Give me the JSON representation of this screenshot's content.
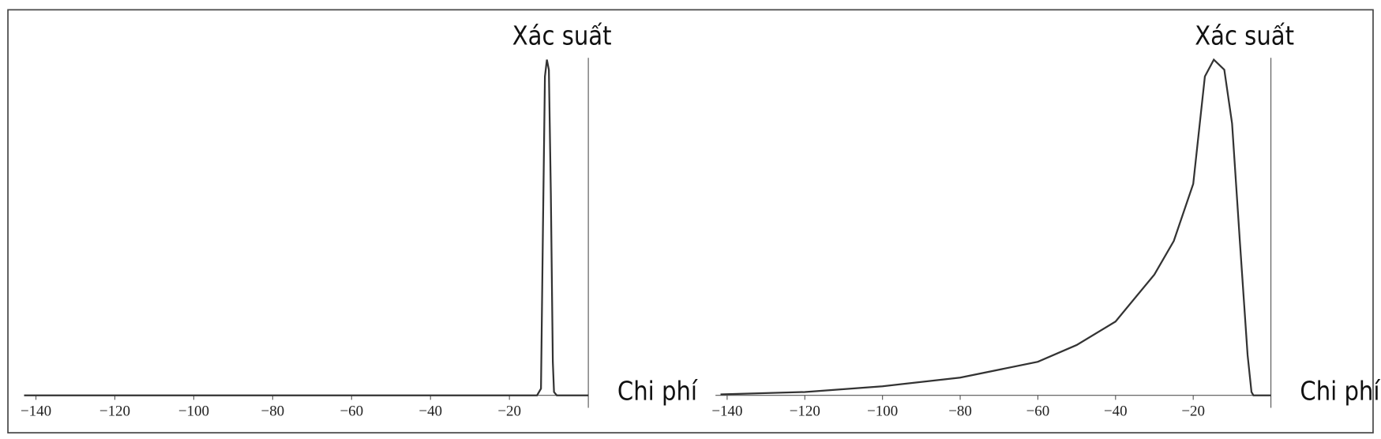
{
  "chart_data": [
    {
      "type": "line",
      "ylabel": "Xác suất",
      "xlabel": "Chi phí",
      "x": [
        -143,
        -13,
        -12,
        -11.5,
        -11,
        -10.5,
        -10,
        -9.5,
        -9,
        -8.7,
        -8,
        0
      ],
      "series": [
        {
          "color": "#333333",
          "values": [
            0,
            0,
            0.02,
            0.5,
            0.95,
            1,
            0.97,
            0.6,
            0.1,
            0.01,
            0,
            0
          ]
        }
      ],
      "xlim": [
        -143,
        0
      ],
      "ylim": [
        0,
        1
      ],
      "xticks": [
        {
          "value": -140,
          "label": "−140"
        },
        {
          "value": -120,
          "label": "−120"
        },
        {
          "value": -100,
          "label": "−100"
        },
        {
          "value": -80,
          "label": "−80"
        },
        {
          "value": -60,
          "label": "−60"
        },
        {
          "value": -40,
          "label": "−40"
        },
        {
          "value": -20,
          "label": "−20"
        }
      ]
    },
    {
      "type": "line",
      "ylabel": "Xác suất",
      "xlabel": "Chi phí",
      "x": [
        -141.7,
        -120,
        -100,
        -80,
        -60,
        -50,
        -40,
        -30,
        -25,
        -20,
        -17,
        -14.7,
        -12,
        -10,
        -8,
        -6,
        -5,
        -4.5,
        0
      ],
      "series": [
        {
          "color": "#333333",
          "values": [
            0.003,
            0.01,
            0.027,
            0.053,
            0.1,
            0.15,
            0.22,
            0.36,
            0.46,
            0.63,
            0.95,
            1,
            0.97,
            0.81,
            0.46,
            0.12,
            0.01,
            0,
            0
          ]
        }
      ],
      "xlim": [
        -143,
        0
      ],
      "ylim": [
        0,
        1
      ],
      "xticks": [
        {
          "value": -140,
          "label": "−140"
        },
        {
          "value": -120,
          "label": "−120"
        },
        {
          "value": -100,
          "label": "−100"
        },
        {
          "value": -80,
          "label": "−80"
        },
        {
          "value": -60,
          "label": "−60"
        },
        {
          "value": -40,
          "label": "−40"
        },
        {
          "value": -20,
          "label": "−20"
        }
      ]
    }
  ]
}
